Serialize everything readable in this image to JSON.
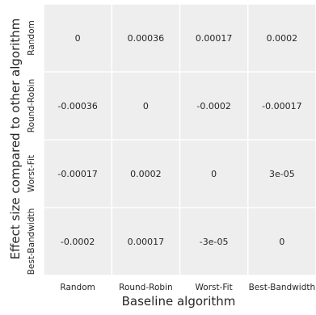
{
  "chart_data": {
    "type": "heatmap",
    "title": "",
    "xlabel": "Baseline algorithm",
    "ylabel": "Effect size compared to other algorithm",
    "x_categories": [
      "Random",
      "Round-Robin",
      "Worst-Fit",
      "Best-Bandwidth"
    ],
    "y_categories": [
      "Random",
      "Round-Robin",
      "Worst-Fit",
      "Best-Bandwidth"
    ],
    "values": [
      [
        0,
        0.00036,
        0.00017,
        0.0002
      ],
      [
        -0.00036,
        0,
        -0.0002,
        -0.00017
      ],
      [
        -0.00017,
        0.0002,
        0,
        3e-05
      ],
      [
        -0.0002,
        0.00017,
        -3e-05,
        0
      ]
    ],
    "cell_labels": [
      [
        "0",
        "0.00036",
        "0.00017",
        "0.0002"
      ],
      [
        "-0.00036",
        "0",
        "-0.0002",
        "-0.00017"
      ],
      [
        "-0.00017",
        "0.0002",
        "0",
        "3e-05"
      ],
      [
        "-0.0002",
        "0.00017",
        "-3e-05",
        "0"
      ]
    ],
    "grid": true,
    "colors": {
      "cell_background": "#eeeeee",
      "grid_line": "#ffffff",
      "text": "#262626",
      "tick_text": "#262626",
      "axis_label": "#262626"
    }
  }
}
